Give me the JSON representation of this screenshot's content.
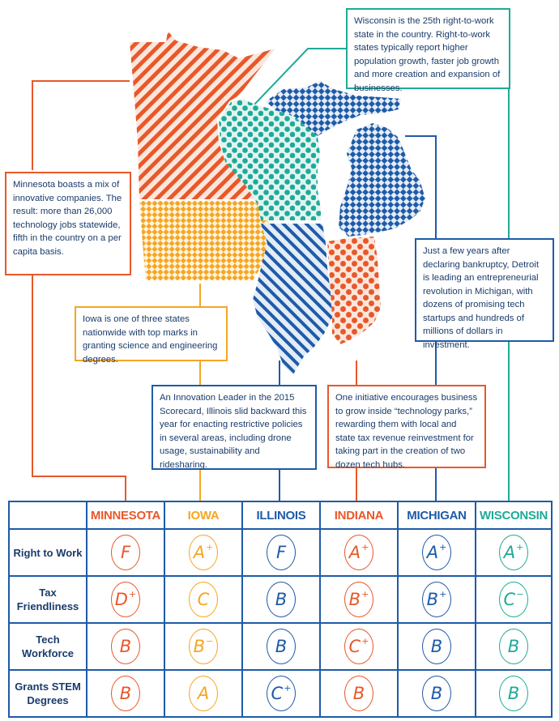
{
  "colors": {
    "minnesota": "#e8582a",
    "iowa": "#f5a623",
    "illinois": "#1e5ba8",
    "indiana": "#e8582a",
    "michigan": "#1e5ba8",
    "wisconsin": "#1faa98",
    "text": "#1a3b6b",
    "grid": "#1e5ba8"
  },
  "callouts": {
    "minnesota": "Minnesota boasts a mix of innovative companies. The result: more than 26,000 technology jobs statewide, fifth in the country on a per capita basis.",
    "iowa": "Iowa is one of three states nationwide with top marks in granting science and engineering degrees.",
    "wisconsin": "Wisconsin is the 25th right-to-work state in the country. Right-to-work states typically report higher population growth, faster job growth and more creation and expansion of businesses.",
    "michigan": "Just a few years after declaring bankruptcy, Detroit is leading an entrepreneurial revolution in Michigan, with dozens of promising tech startups and hundreds of millions of dollars in investment.",
    "illinois": "An Innovation Leader in the 2015 Scorecard, Illinois slid backward this year for enacting restrictive policies in several areas, including drone usage, sustainability and ridesharing.",
    "indiana": "One initiative encourages business to grow inside “technology parks,” rewarding them with local and state tax revenue reinvestment for taking part in the creation of two dozen tech hubs."
  },
  "table": {
    "states": [
      "MINNESOTA",
      "IOWA",
      "ILLINOIS",
      "INDIANA",
      "MICHIGAN",
      "WISCONSIN"
    ],
    "rows": [
      {
        "label": "Right to Work",
        "grades": [
          [
            "F",
            ""
          ],
          [
            "A",
            "+"
          ],
          [
            "F",
            ""
          ],
          [
            "A",
            "+"
          ],
          [
            "A",
            "+"
          ],
          [
            "A",
            "+"
          ]
        ]
      },
      {
        "label": "Tax Friendliness",
        "grades": [
          [
            "D",
            "+"
          ],
          [
            "C",
            ""
          ],
          [
            "B",
            ""
          ],
          [
            "B",
            "+"
          ],
          [
            "B",
            "+"
          ],
          [
            "C",
            "−"
          ]
        ]
      },
      {
        "label": "Tech Workforce",
        "grades": [
          [
            "B",
            ""
          ],
          [
            "B",
            "−"
          ],
          [
            "B",
            ""
          ],
          [
            "C",
            "+"
          ],
          [
            "B",
            ""
          ],
          [
            "B",
            ""
          ]
        ]
      },
      {
        "label": "Grants STEM Degrees",
        "grades": [
          [
            "B",
            ""
          ],
          [
            "A",
            ""
          ],
          [
            "C",
            "+"
          ],
          [
            "B",
            ""
          ],
          [
            "B",
            ""
          ],
          [
            "B",
            ""
          ]
        ]
      }
    ]
  },
  "map_patterns": {
    "minnesota": "diagonal-stripes",
    "iowa": "diamond-checker",
    "wisconsin": "dots",
    "illinois": "diagonal-stripes",
    "michigan": "diamond-checker",
    "indiana": "dots"
  }
}
